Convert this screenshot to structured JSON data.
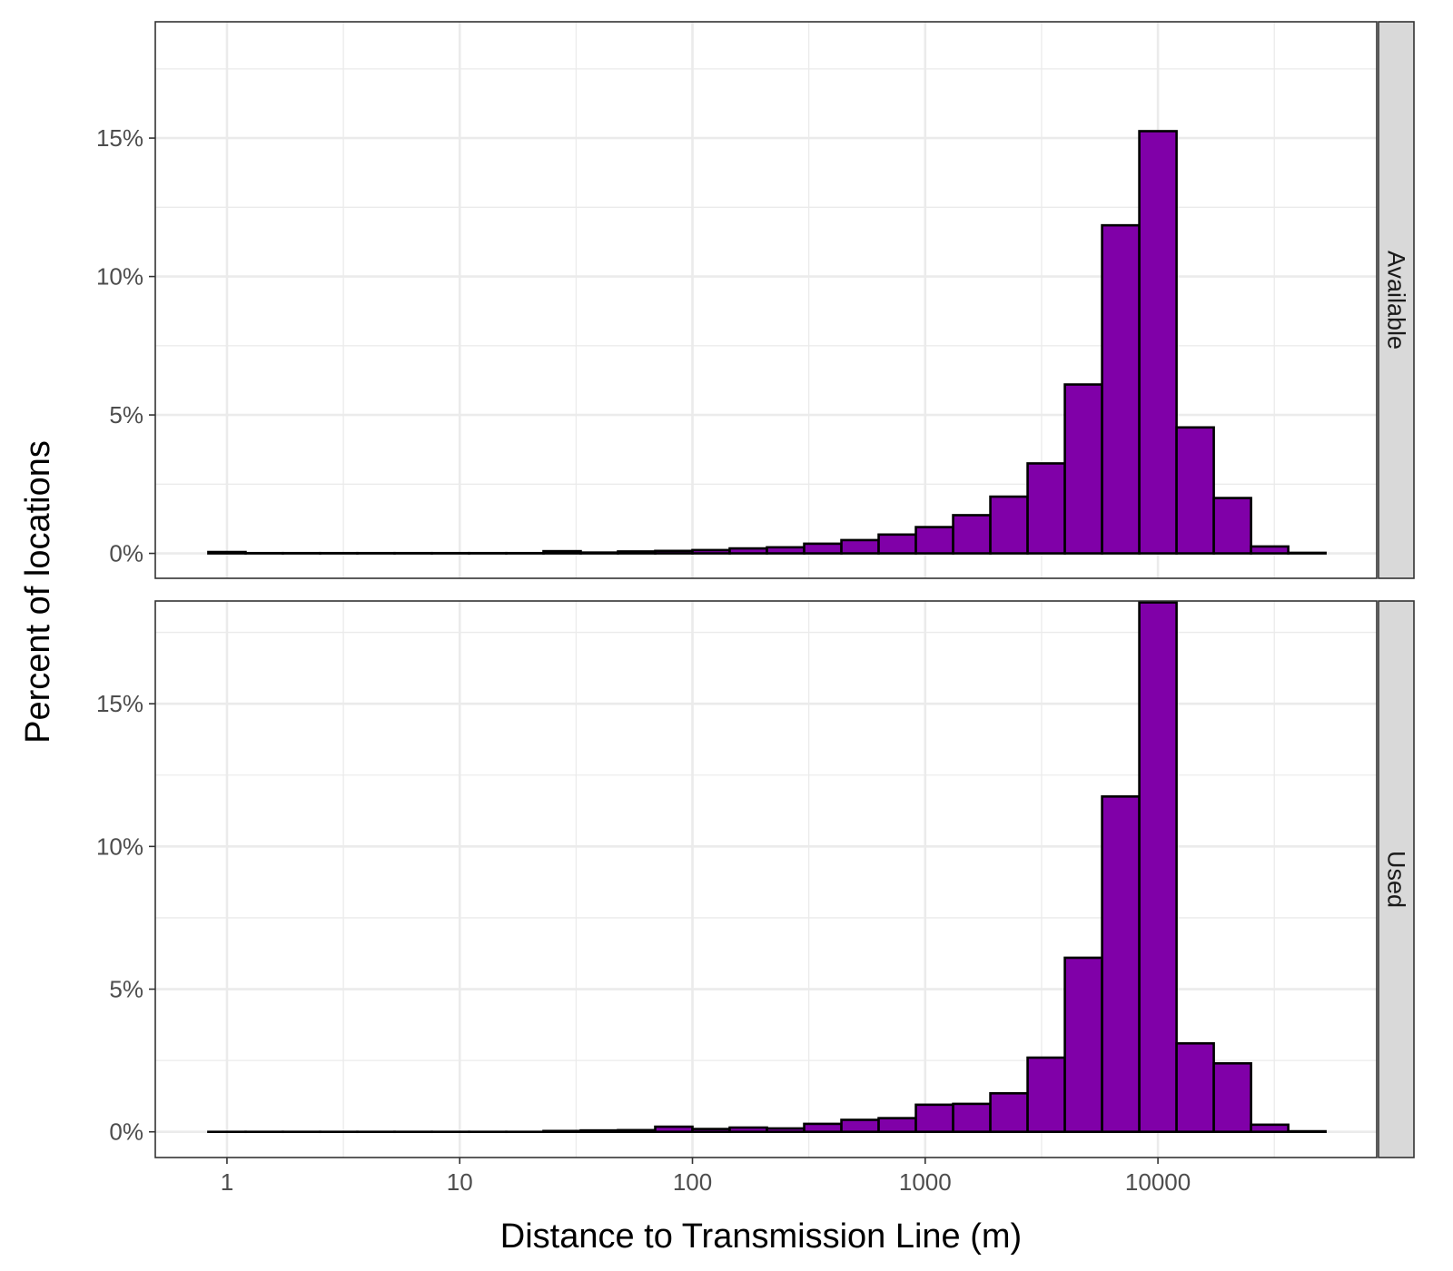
{
  "chart_data": {
    "type": "bar",
    "subtype": "faceted-histogram",
    "xlabel": "Distance to Transmission Line (m)",
    "ylabel": "Percent of locations",
    "x_scale": "log10",
    "x_ticks": [
      1,
      10,
      100,
      1000,
      10000
    ],
    "x_tick_labels": [
      "1",
      "10",
      "100",
      "1000",
      "10000"
    ],
    "grid": true,
    "bar_color": "#8000a8",
    "bar_outline": "#000000",
    "panel_border": "#333333",
    "strip_fill": "#d9d9d9",
    "bin_edges_log10": [
      -0.08,
      0.08,
      0.24,
      0.4,
      0.56,
      0.72,
      0.88,
      1.04,
      1.2,
      1.36,
      1.52,
      1.68,
      1.84,
      2.0,
      2.16,
      2.32,
      2.48,
      2.64,
      2.8,
      2.96,
      3.12,
      3.28,
      3.44,
      3.6,
      3.76,
      3.92,
      4.08,
      4.24,
      4.4,
      4.56,
      4.72
    ],
    "panels": [
      {
        "label": "Available",
        "ylim": [
          -0.9,
          19.2
        ],
        "y_ticks": [
          0,
          5,
          10,
          15
        ],
        "y_tick_labels": [
          "0%",
          "5%",
          "10%",
          "15%"
        ],
        "values": [
          0.05,
          0.01,
          0.01,
          0.01,
          0.01,
          0.01,
          0.01,
          0.01,
          0.01,
          0.08,
          0.03,
          0.07,
          0.09,
          0.12,
          0.18,
          0.22,
          0.35,
          0.48,
          0.68,
          0.95,
          1.38,
          2.05,
          3.25,
          6.1,
          11.85,
          15.25,
          4.55,
          2.0,
          0.25,
          0.02
        ]
      },
      {
        "label": "Used",
        "ylim": [
          -0.9,
          18.6
        ],
        "y_ticks": [
          0,
          5,
          10,
          15
        ],
        "y_tick_labels": [
          "0%",
          "5%",
          "10%",
          "15%"
        ],
        "values": [
          0.0,
          0.0,
          0.0,
          0.0,
          0.0,
          0.0,
          0.0,
          0.0,
          0.0,
          0.03,
          0.05,
          0.06,
          0.18,
          0.1,
          0.15,
          0.12,
          0.28,
          0.42,
          0.48,
          0.95,
          0.98,
          1.35,
          2.6,
          6.1,
          11.75,
          18.55,
          3.1,
          2.4,
          0.25,
          0.02
        ]
      }
    ]
  }
}
